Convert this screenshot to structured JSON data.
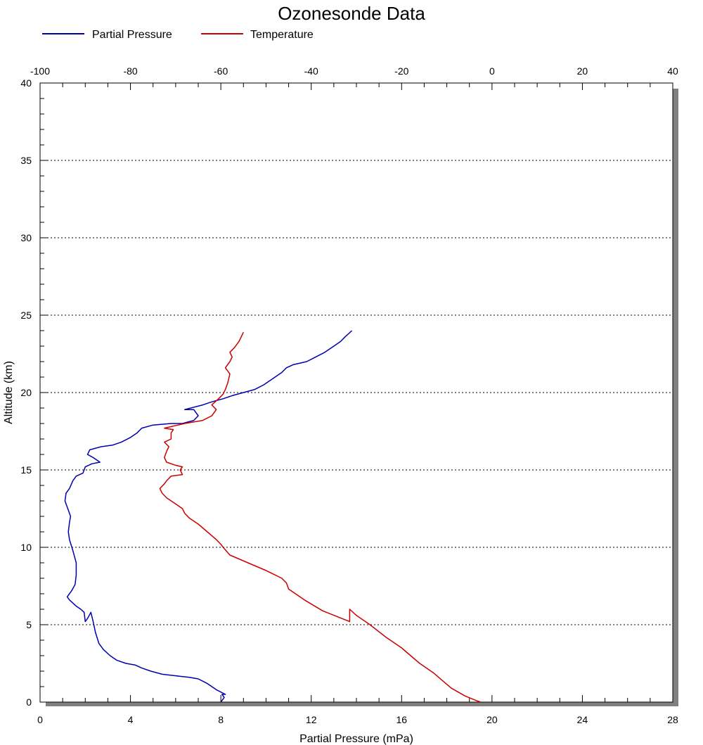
{
  "chart_data": {
    "type": "line",
    "title": "Ozonesonde Data",
    "xlabel": "Partial Pressure (mPa)",
    "ylabel": "Altitude (km)",
    "x_bottom": {
      "range": [
        0,
        28
      ],
      "ticks": [
        "0",
        "4",
        "8",
        "12",
        "16",
        "20",
        "24",
        "28"
      ]
    },
    "x_top": {
      "range": [
        -100,
        40
      ],
      "ticks": [
        "-100",
        "-80",
        "-60",
        "-40",
        "-20",
        "0",
        "20",
        "40"
      ]
    },
    "y": {
      "range": [
        0,
        40
      ],
      "ticks": [
        "0",
        "5",
        "10",
        "15",
        "20",
        "25",
        "30",
        "35",
        "40"
      ]
    },
    "grid": "horizontal dotted",
    "legend_placement": "top-left",
    "series": [
      {
        "name": "Partial Pressure",
        "axis": "bottom",
        "color": "#0000b0",
        "points": [
          [
            8.0,
            0.0
          ],
          [
            8.15,
            0.3
          ],
          [
            8.05,
            0.5
          ],
          [
            8.2,
            0.5
          ],
          [
            7.8,
            0.8
          ],
          [
            7.6,
            1.0
          ],
          [
            7.4,
            1.2
          ],
          [
            7.0,
            1.5
          ],
          [
            6.6,
            1.6
          ],
          [
            6.0,
            1.7
          ],
          [
            5.4,
            1.8
          ],
          [
            4.9,
            2.0
          ],
          [
            4.5,
            2.2
          ],
          [
            4.2,
            2.4
          ],
          [
            3.8,
            2.5
          ],
          [
            3.4,
            2.7
          ],
          [
            3.1,
            3.0
          ],
          [
            2.8,
            3.4
          ],
          [
            2.6,
            3.8
          ],
          [
            2.45,
            4.5
          ],
          [
            2.35,
            5.2
          ],
          [
            2.25,
            5.8
          ],
          [
            2.1,
            5.4
          ],
          [
            2.0,
            5.2
          ],
          [
            1.95,
            5.8
          ],
          [
            1.8,
            6.0
          ],
          [
            1.6,
            6.2
          ],
          [
            1.3,
            6.6
          ],
          [
            1.2,
            6.8
          ],
          [
            1.4,
            7.2
          ],
          [
            1.55,
            7.6
          ],
          [
            1.6,
            8.2
          ],
          [
            1.6,
            9.0
          ],
          [
            1.45,
            9.8
          ],
          [
            1.3,
            10.5
          ],
          [
            1.25,
            11.0
          ],
          [
            1.3,
            11.6
          ],
          [
            1.35,
            12.0
          ],
          [
            1.2,
            12.6
          ],
          [
            1.1,
            13.0
          ],
          [
            1.15,
            13.5
          ],
          [
            1.3,
            13.8
          ],
          [
            1.45,
            14.3
          ],
          [
            1.6,
            14.6
          ],
          [
            1.9,
            14.8
          ],
          [
            2.0,
            15.2
          ],
          [
            2.3,
            15.4
          ],
          [
            2.65,
            15.5
          ],
          [
            2.35,
            15.8
          ],
          [
            2.1,
            16.0
          ],
          [
            2.2,
            16.3
          ],
          [
            2.7,
            16.5
          ],
          [
            3.2,
            16.6
          ],
          [
            3.6,
            16.8
          ],
          [
            4.0,
            17.1
          ],
          [
            4.3,
            17.4
          ],
          [
            4.5,
            17.7
          ],
          [
            5.0,
            17.9
          ],
          [
            5.8,
            18.0
          ],
          [
            6.3,
            18.0
          ],
          [
            6.8,
            18.2
          ],
          [
            7.0,
            18.5
          ],
          [
            6.8,
            18.9
          ],
          [
            6.4,
            18.9
          ],
          [
            7.2,
            19.2
          ],
          [
            7.6,
            19.4
          ],
          [
            8.1,
            19.6
          ],
          [
            8.5,
            19.8
          ],
          [
            9.0,
            20.0
          ],
          [
            9.5,
            20.2
          ],
          [
            9.9,
            20.5
          ],
          [
            10.1,
            20.7
          ],
          [
            10.4,
            21.0
          ],
          [
            10.7,
            21.3
          ],
          [
            10.9,
            21.6
          ],
          [
            11.2,
            21.8
          ],
          [
            11.8,
            22.0
          ],
          [
            12.2,
            22.3
          ],
          [
            12.6,
            22.6
          ],
          [
            13.0,
            23.0
          ],
          [
            13.3,
            23.3
          ],
          [
            13.5,
            23.6
          ],
          [
            13.8,
            24.0
          ]
        ]
      },
      {
        "name": "Temperature",
        "axis": "top",
        "color": "#cc0000",
        "points": [
          [
            -2.5,
            0.0
          ],
          [
            -3.5,
            0.1
          ],
          [
            -6,
            0.4
          ],
          [
            -9,
            0.9
          ],
          [
            -11,
            1.4
          ],
          [
            -13,
            1.9
          ],
          [
            -16,
            2.5
          ],
          [
            -18,
            3.0
          ],
          [
            -20,
            3.5
          ],
          [
            -23.5,
            4.2
          ],
          [
            -27,
            5.0
          ],
          [
            -30,
            5.6
          ],
          [
            -31.5,
            6.0
          ],
          [
            -31.5,
            5.2
          ],
          [
            -37.5,
            5.9
          ],
          [
            -41.5,
            6.6
          ],
          [
            -45,
            7.3
          ],
          [
            -45.5,
            7.7
          ],
          [
            -46.5,
            8.0
          ],
          [
            -50,
            8.5
          ],
          [
            -54,
            9.0
          ],
          [
            -58,
            9.5
          ],
          [
            -59.5,
            10.0
          ],
          [
            -60,
            10.2
          ],
          [
            -61,
            10.5
          ],
          [
            -63,
            11.0
          ],
          [
            -65,
            11.5
          ],
          [
            -67,
            11.9
          ],
          [
            -68,
            12.2
          ],
          [
            -68.5,
            12.5
          ],
          [
            -70,
            12.8
          ],
          [
            -72,
            13.2
          ],
          [
            -73,
            13.5
          ],
          [
            -73.5,
            13.8
          ],
          [
            -72.5,
            14.1
          ],
          [
            -72,
            14.3
          ],
          [
            -71,
            14.6
          ],
          [
            -68.5,
            14.7
          ],
          [
            -69,
            15.0
          ],
          [
            -68.5,
            15.2
          ],
          [
            -70,
            15.3
          ],
          [
            -72,
            15.5
          ],
          [
            -72.5,
            15.8
          ],
          [
            -72,
            16.2
          ],
          [
            -71.5,
            16.5
          ],
          [
            -72.5,
            16.8
          ],
          [
            -71,
            17.0
          ],
          [
            -71,
            17.4
          ],
          [
            -70.5,
            17.6
          ],
          [
            -72.5,
            17.7
          ],
          [
            -68,
            18.0
          ],
          [
            -64,
            18.2
          ],
          [
            -62,
            18.5
          ],
          [
            -61,
            18.9
          ],
          [
            -62,
            19.2
          ],
          [
            -60.5,
            19.6
          ],
          [
            -59.5,
            19.9
          ],
          [
            -59,
            20.2
          ],
          [
            -58.5,
            20.6
          ],
          [
            -58,
            21.2
          ],
          [
            -59,
            21.6
          ],
          [
            -58,
            22.0
          ],
          [
            -57.5,
            22.3
          ],
          [
            -58,
            22.6
          ],
          [
            -57,
            22.9
          ],
          [
            -56,
            23.3
          ],
          [
            -55.5,
            23.6
          ],
          [
            -55,
            23.9
          ]
        ]
      }
    ]
  }
}
